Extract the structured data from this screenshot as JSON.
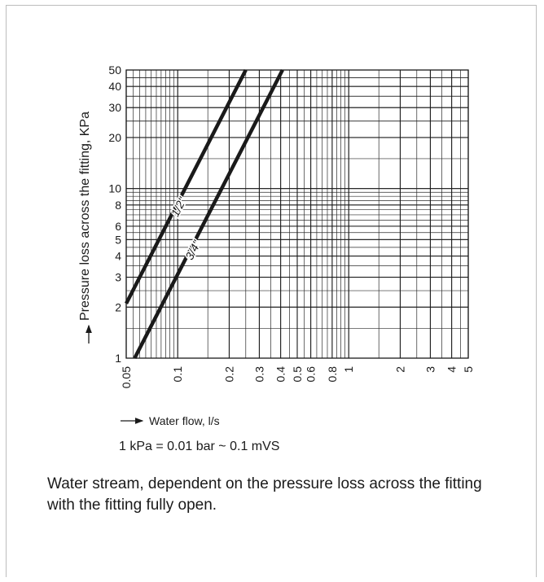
{
  "chart_data": {
    "type": "line",
    "xscale": "log",
    "yscale": "log",
    "xlim": [
      0.05,
      5
    ],
    "ylim": [
      1,
      50
    ],
    "grid": true,
    "xlabel": "Water flow, l/s",
    "ylabel": "Pressure loss across the fitting, KPa",
    "x_tick_labels": [
      "0.05",
      "0.1",
      "0.2",
      "0.3",
      "0.4",
      "0.5",
      "0.6",
      "0.8",
      "1",
      "2",
      "3",
      "4",
      "5"
    ],
    "y_tick_labels": [
      "1",
      "2",
      "3",
      "4",
      "5",
      "6",
      "8",
      "10",
      "20",
      "30",
      "40",
      "50"
    ],
    "series": [
      {
        "name": "1/2\"",
        "x": [
          0.05,
          0.25
        ],
        "y": [
          2.1,
          50
        ]
      },
      {
        "name": "3/4\"",
        "x": [
          0.056,
          0.41
        ],
        "y": [
          1,
          50
        ]
      }
    ]
  },
  "conversion_note": "1 kPa = 0.01 bar ~ 0.1 mVS",
  "caption": "Water stream, dependent on the pressure loss across the fitting with the fitting fully open."
}
